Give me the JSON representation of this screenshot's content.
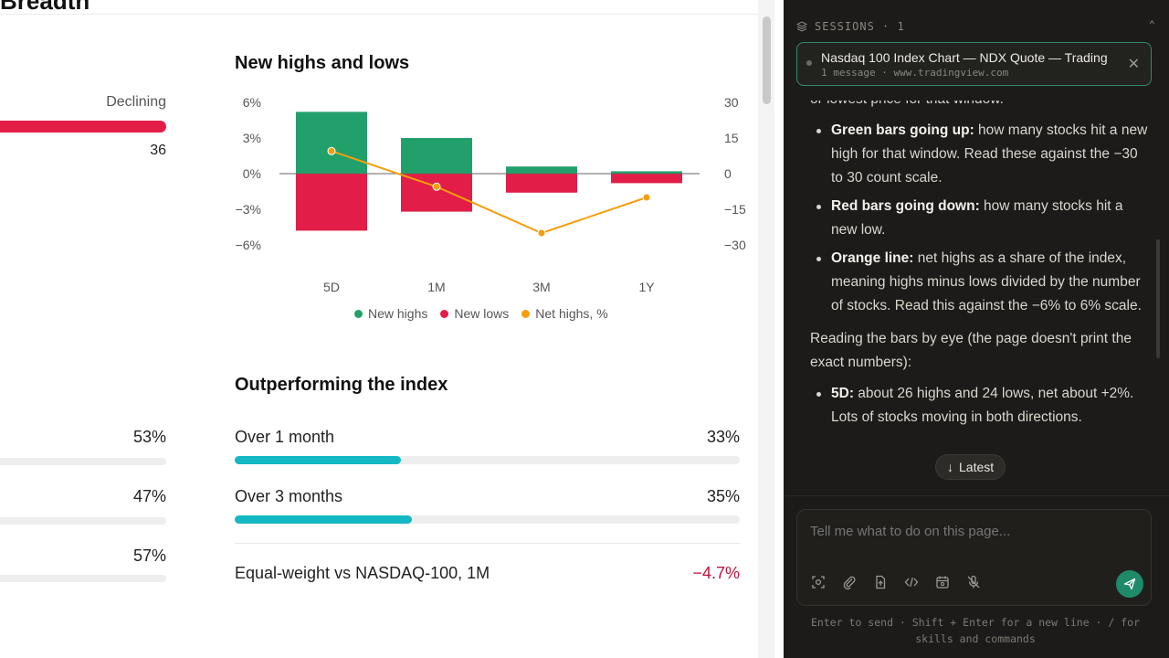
{
  "page": {
    "cut_title": "Breadth",
    "declining": {
      "label": "Declining",
      "count": "36",
      "bar_color": "#e11d48"
    },
    "new_highs_lows": {
      "title": "New highs and lows",
      "legend": [
        {
          "label": "New highs",
          "color": "#22a06b"
        },
        {
          "label": "New lows",
          "color": "#e11d48"
        },
        {
          "label": "Net highs, %",
          "color": "#f59e0b"
        }
      ]
    },
    "left_pcts": [
      "53%",
      "47%",
      "57%"
    ],
    "outperforming": {
      "title": "Outperforming the index",
      "rows": [
        {
          "label": "Over 1 month",
          "value": "33%",
          "fill": 0.33
        },
        {
          "label": "Over 3 months",
          "value": "35%",
          "fill": 0.35
        }
      ],
      "equal_weight": {
        "label": "Equal-weight vs NASDAQ-100, 1M",
        "value": "−4.7%"
      }
    }
  },
  "chart_data": {
    "type": "bar",
    "categories": [
      "5D",
      "1M",
      "3M",
      "1Y"
    ],
    "series": [
      {
        "name": "New highs",
        "values": [
          26,
          15,
          3,
          1
        ],
        "color": "#22a06b"
      },
      {
        "name": "New lows",
        "values": [
          -24,
          -16,
          -8,
          -4
        ],
        "color": "#e11d48"
      },
      {
        "name": "Net highs, %",
        "values": [
          1.9,
          -1.1,
          -5.0,
          -2.0
        ],
        "color": "#f59e0b",
        "type": "line"
      }
    ],
    "y_left": {
      "ticks": [
        "6%",
        "3%",
        "0%",
        "−3%",
        "−6%"
      ],
      "range": [
        -6,
        6
      ]
    },
    "y_right": {
      "ticks": [
        "30",
        "15",
        "0",
        "−15",
        "−30"
      ],
      "range": [
        -30,
        30
      ]
    }
  },
  "panel": {
    "sessions_label": "SESSIONS · 1",
    "session": {
      "title": "Nasdaq 100 Index Chart — NDX Quote — Trading",
      "subtitle": "1 message · www.tradingview.com"
    },
    "message": {
      "line0": "or lowest price for that window.",
      "bullets1": [
        {
          "bold": "Green bars going up:",
          "text": " how many stocks hit a new high for that window. Read these against the −30 to 30 count scale."
        },
        {
          "bold": "Red bars going down:",
          "text": " how many stocks hit a new low."
        },
        {
          "bold": "Orange line:",
          "text": " net highs as a share of the index, meaning highs minus lows divided by the number of stocks. Read this against the −6% to 6% scale."
        }
      ],
      "para": "Reading the bars by eye (the page doesn't print the exact numbers):",
      "bullets2": [
        {
          "bold": "5D:",
          "text": " about 26 highs and 24 lows, net about +2%. Lots of stocks moving in both directions."
        }
      ]
    },
    "latest_label": "Latest",
    "composer_placeholder": "Tell me what to do on this page...",
    "hint": "Enter to send · Shift + Enter for a new line · / for skills and commands",
    "tool_icons": [
      "screenshot-icon",
      "attach-icon",
      "file-icon",
      "code-icon",
      "schedule-icon",
      "mic-off-icon"
    ]
  }
}
